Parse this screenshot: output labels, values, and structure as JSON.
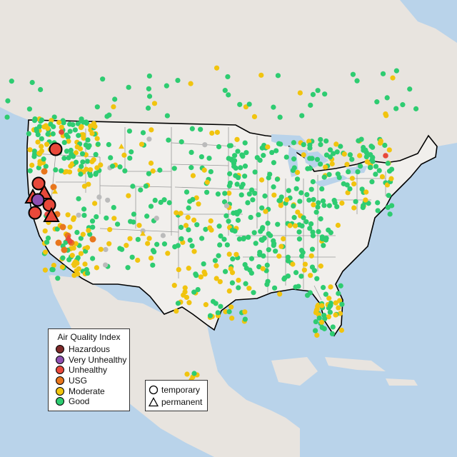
{
  "legend": {
    "title": "Air Quality Index",
    "categories": [
      {
        "label": "Hazardous",
        "color": "#7e2a2a"
      },
      {
        "label": "Very Unhealthy",
        "color": "#8e4fb0"
      },
      {
        "label": "Unhealthy",
        "color": "#e8483a"
      },
      {
        "label": "USG",
        "color": "#e8761d"
      },
      {
        "label": "Moderate",
        "color": "#f1c40f"
      },
      {
        "label": "Good",
        "color": "#2ecc71"
      }
    ]
  },
  "monitor_types": {
    "temporary": "temporary",
    "permanent": "permanent"
  },
  "colors": {
    "water": "#b9d3ea",
    "land": "#e8e4df",
    "us_land": "#f1efec",
    "border": "#000000",
    "state_lines": "#9a9a9a",
    "no_data": "#bbbbbb"
  }
}
